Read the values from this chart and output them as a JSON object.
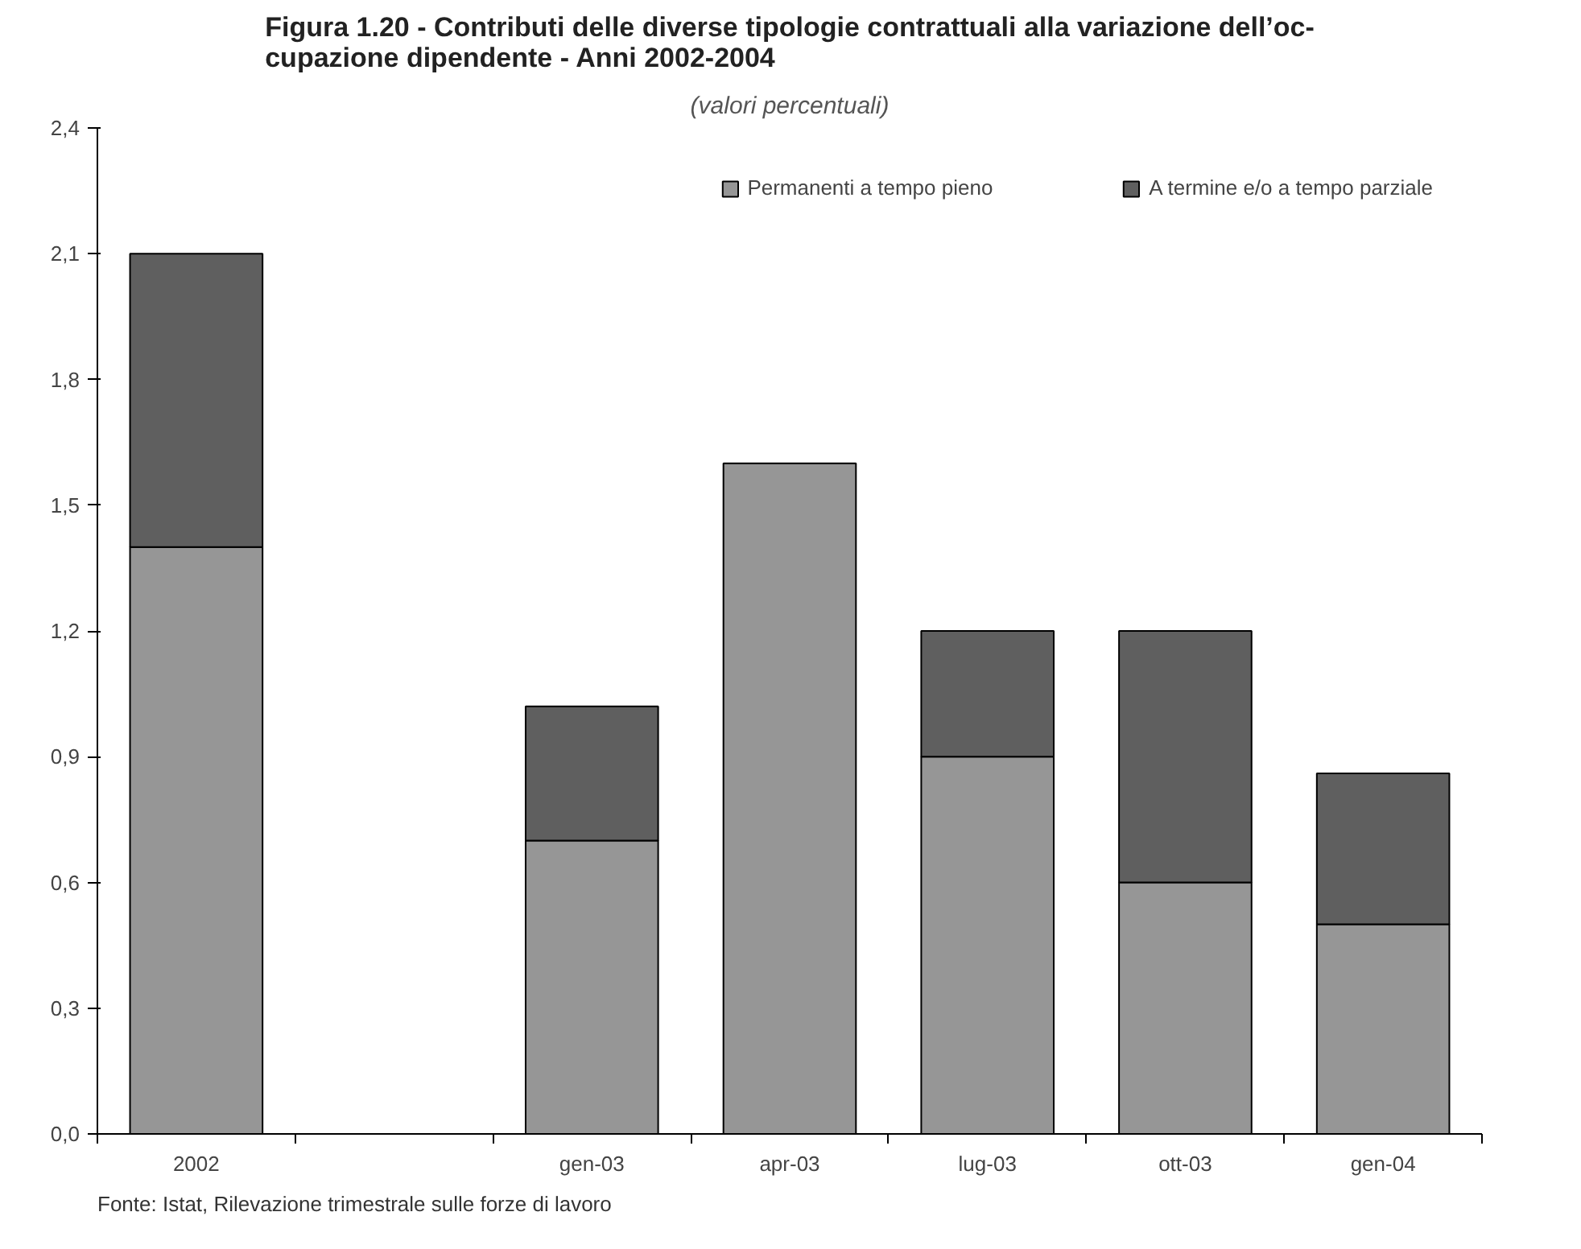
{
  "chart_data": {
    "type": "bar",
    "stacked": true,
    "title": "Figura 1.20 - Contributi delle diverse tipologie contrattuali alla variazione dell’oc-\ncupazione dipendente - Anni 2002-2004",
    "subtitle": "(valori percentuali)",
    "annotations": [
      "Fonte: Istat, Rilevazione trimestrale sulle forze di lavoro"
    ],
    "categories": [
      "2002",
      null,
      "gen-03",
      "apr-03",
      "lug-03",
      "ott-03",
      "gen-04"
    ],
    "series": [
      {
        "name": "Permanenti a tempo pieno",
        "color": "#969696",
        "values": [
          1.4,
          null,
          0.7,
          1.6,
          0.9,
          0.6,
          0.5
        ]
      },
      {
        "name": "A termine e/o a tempo parziale",
        "color": "#5f5f5f",
        "values": [
          0.7,
          null,
          0.32,
          0,
          0.3,
          0.6,
          0.36
        ]
      }
    ],
    "ylim": [
      0,
      2.4
    ],
    "yticks": [
      {
        "value": 0,
        "label": "0,0"
      },
      {
        "value": 0.3,
        "label": "0,3"
      },
      {
        "value": 0.6,
        "label": "0,6"
      },
      {
        "value": 0.9,
        "label": "0,9"
      },
      {
        "value": 1.2,
        "label": "1,2"
      },
      {
        "value": 1.5,
        "label": "1,5"
      },
      {
        "value": 1.8,
        "label": "1,8"
      },
      {
        "value": 2.1,
        "label": "2,1"
      },
      {
        "value": 2.4,
        "label": "2,4"
      }
    ],
    "grid": false,
    "legend": "top right"
  }
}
